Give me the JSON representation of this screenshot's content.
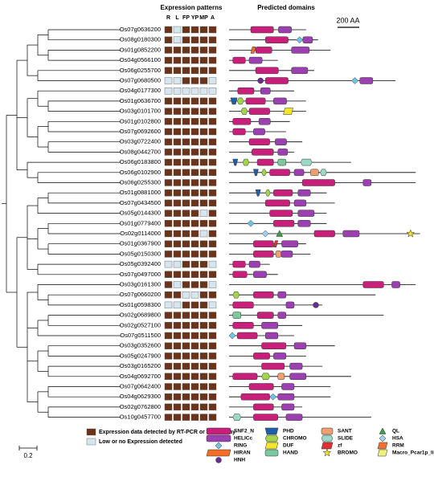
{
  "header": {
    "expression_title": "Expression patterns",
    "tissues": [
      "R",
      "L",
      "FP",
      "YP",
      "MP",
      "A"
    ],
    "domains_title": "Predicted domains",
    "scale_bar": {
      "label": "200 AA",
      "length": 200
    }
  },
  "genes": [
    {
      "name": "Os07g0636200",
      "expression": [
        1,
        0,
        1,
        1,
        1,
        1
      ],
      "length": 710,
      "domains": [
        [
          "SNF2_N",
          200,
          410
        ],
        [
          "HELICc",
          455,
          575
        ]
      ]
    },
    {
      "name": "Os08g0180300",
      "expression": [
        1,
        0,
        1,
        1,
        1,
        1
      ],
      "length": 820,
      "domains": [
        [
          "SNF2_N",
          335,
          545
        ],
        [
          "RING",
          635,
          665
        ],
        [
          "HELICc",
          680,
          770
        ]
      ]
    },
    {
      "name": "Os01g0852200",
      "expression": [
        1,
        1,
        1,
        1,
        1,
        1
      ],
      "length": 935,
      "domains": [
        [
          "HIRAN",
          200,
          245
        ],
        [
          "SNF2_N",
          245,
          395
        ],
        [
          "HELICc",
          575,
          740
        ]
      ]
    },
    {
      "name": "Os04g0566100",
      "expression": [
        1,
        1,
        1,
        1,
        1,
        1
      ],
      "length": 450,
      "domains": [
        [
          "SNF2_N",
          35,
          150
        ],
        [
          "HELICc",
          185,
          305
        ]
      ]
    },
    {
      "name": "Os06g0255700",
      "expression": [
        1,
        1,
        1,
        1,
        1,
        1
      ],
      "length": 785,
      "domains": [
        [
          "SNF2_N",
          245,
          455
        ],
        [
          "HELICc",
          575,
          725
        ]
      ]
    },
    {
      "name": "Os07g0680500",
      "expression": [
        0,
        0,
        1,
        1,
        1,
        0
      ],
      "length": 1535,
      "domains": [
        [
          "HNH",
          275,
          305
        ],
        [
          "SNF2_N",
          335,
          545
        ],
        [
          "RING",
          1145,
          1175
        ],
        [
          "HELICc",
          1205,
          1325
        ]
      ]
    },
    {
      "name": "Os04g0177300",
      "expression": [
        0,
        0,
        0,
        0,
        0,
        0
      ],
      "length": 600,
      "domains": [
        [
          "SNF2_N",
          80,
          230
        ],
        [
          "HELICc",
          290,
          380
        ]
      ]
    },
    {
      "name": "Os01g0636700",
      "expression": [
        1,
        1,
        1,
        1,
        1,
        1
      ],
      "length": 710,
      "domains": [
        [
          "PHD",
          15,
          75
        ],
        [
          "CHROMO",
          75,
          135
        ],
        [
          "SNF2_N",
          155,
          335
        ],
        [
          "HELICc",
          410,
          530
        ]
      ]
    },
    {
      "name": "Os03g0101700",
      "expression": [
        1,
        1,
        1,
        1,
        1,
        1
      ],
      "length": 710,
      "domains": [
        [
          "CHROMO",
          110,
          170
        ],
        [
          "SNF2_N",
          185,
          375
        ],
        [
          "DUF",
          500,
          590
        ]
      ]
    },
    {
      "name": "Os01g0102800",
      "expression": [
        1,
        1,
        1,
        1,
        1,
        1
      ],
      "length": 560,
      "domains": [
        [
          "SNF2_N",
          35,
          200
        ],
        [
          "HELICc",
          275,
          380
        ]
      ]
    },
    {
      "name": "Os07g0692600",
      "expression": [
        1,
        1,
        1,
        1,
        1,
        1
      ],
      "length": 525,
      "domains": [
        [
          "SNF2_N",
          35,
          150
        ],
        [
          "HELICc",
          225,
          330
        ]
      ]
    },
    {
      "name": "Os03g0722400",
      "expression": [
        1,
        1,
        1,
        1,
        1,
        1
      ],
      "length": 675,
      "domains": [
        [
          "SNF2_N",
          185,
          375
        ],
        [
          "HELICc",
          425,
          530
        ]
      ]
    },
    {
      "name": "Os08g0442700",
      "expression": [
        1,
        1,
        1,
        1,
        1,
        1
      ],
      "length": 600,
      "domains": [
        [
          "SNF2_N",
          210,
          410
        ],
        [
          "HELICc",
          450,
          540
        ]
      ]
    },
    {
      "name": "Os06g0183800",
      "expression": [
        1,
        1,
        1,
        1,
        1,
        1
      ],
      "length": 1125,
      "domains": [
        [
          "PHD",
          35,
          80
        ],
        [
          "CHROMO",
          125,
          185
        ],
        [
          "SNF2_N",
          260,
          410
        ],
        [
          "HAND",
          450,
          525
        ],
        [
          "SLIDE",
          660,
          765
        ]
      ]
    },
    {
      "name": "Os06g0102900",
      "expression": [
        1,
        1,
        1,
        1,
        1,
        1
      ],
      "length": 1720,
      "domains": [
        [
          "PHD",
          225,
          270
        ],
        [
          "CHROMO",
          300,
          345
        ],
        [
          "SNF2_N",
          375,
          560
        ],
        [
          "HELICc",
          600,
          690
        ],
        [
          "SANT",
          750,
          825
        ],
        [
          "SLIDE",
          840,
          900
        ]
      ]
    },
    {
      "name": "Os06g0255300",
      "expression": [
        1,
        1,
        1,
        1,
        1,
        1
      ],
      "length": 1720,
      "domains": [
        [
          "SNF2_N",
          675,
          975
        ],
        [
          "HELICc",
          1235,
          1310
        ]
      ]
    },
    {
      "name": "Os01g0881000",
      "expression": [
        1,
        1,
        1,
        1,
        1,
        1
      ],
      "length": 900,
      "domains": [
        [
          "PHD",
          245,
          290
        ],
        [
          "CHROMO",
          335,
          380
        ],
        [
          "SNF2_N",
          410,
          585
        ],
        [
          "HELICc",
          635,
          750
        ]
      ]
    },
    {
      "name": "Os07g0434500",
      "expression": [
        1,
        1,
        1,
        1,
        1,
        1
      ],
      "length": 975,
      "domains": [
        [
          "SNF2_N",
          335,
          560
        ],
        [
          "HELICc",
          600,
          710
        ]
      ]
    },
    {
      "name": "Os05g0144300",
      "expression": [
        1,
        1,
        1,
        1,
        0,
        1
      ],
      "length": 900,
      "domains": [
        [
          "SNF2_N",
          375,
          585
        ],
        [
          "HELICc",
          635,
          785
        ]
      ]
    },
    {
      "name": "Os01g0779400",
      "expression": [
        1,
        1,
        1,
        1,
        1,
        1
      ],
      "length": 900,
      "domains": [
        [
          "RING",
          185,
          215
        ],
        [
          "SNF2_N",
          410,
          600
        ],
        [
          "HELICc",
          635,
          750
        ]
      ]
    },
    {
      "name": "Os02g0114000",
      "expression": [
        1,
        1,
        1,
        1,
        0,
        1
      ],
      "length": 1760,
      "domains": [
        [
          "HSA",
          320,
          350
        ],
        [
          "QL",
          450,
          480
        ],
        [
          "SNF2_N",
          785,
          975
        ],
        [
          "HELICc",
          1050,
          1200
        ],
        [
          "BROMO",
          1650,
          1695
        ]
      ]
    },
    {
      "name": "Os01g0367900",
      "expression": [
        1,
        1,
        1,
        1,
        1,
        1
      ],
      "length": 710,
      "domains": [
        [
          "SNF2_N",
          225,
          410
        ],
        [
          "zf",
          410,
          450
        ],
        [
          "HELICc",
          485,
          635
        ]
      ]
    },
    {
      "name": "Os05g0150300",
      "expression": [
        1,
        1,
        1,
        1,
        1,
        1
      ],
      "length": 750,
      "domains": [
        [
          "SNF2_N",
          225,
          410
        ],
        [
          "SANT",
          430,
          480
        ],
        [
          "HELICc",
          480,
          585
        ]
      ]
    },
    {
      "name": "Os05g0392400",
      "expression": [
        0,
        0,
        1,
        1,
        1,
        0
      ],
      "length": 375,
      "domains": [
        [
          "SNF2_N",
          35,
          150
        ],
        [
          "HELICc",
          185,
          285
        ]
      ]
    },
    {
      "name": "Os07g0497000",
      "expression": [
        1,
        1,
        1,
        1,
        1,
        1
      ],
      "length": 450,
      "domains": [
        [
          "SNF2_N",
          35,
          165
        ],
        [
          "HELICc",
          225,
          345
        ]
      ]
    },
    {
      "name": "Os03g0161300",
      "expression": [
        1,
        0,
        1,
        1,
        1,
        0
      ],
      "length": 1720,
      "domains": [
        [
          "SNF2_N",
          1235,
          1425
        ],
        [
          "HELICc",
          1500,
          1575
        ]
      ]
    },
    {
      "name": "Os07g0660200",
      "expression": [
        1,
        1,
        0,
        0,
        1,
        1
      ],
      "length": 1350,
      "domains": [
        [
          "CHROMO",
          35,
          95
        ],
        [
          "SNF2_N",
          225,
          410
        ],
        [
          "HELICc",
          450,
          525
        ]
      ]
    },
    {
      "name": "Os01g0598300",
      "expression": [
        0,
        0,
        1,
        1,
        1,
        0
      ],
      "length": 860,
      "domains": [
        [
          "SNF2_N",
          35,
          225
        ],
        [
          "HELICc",
          525,
          600
        ],
        [
          "HNH",
          785,
          815
        ]
      ]
    },
    {
      "name": "Os02g0689800",
      "expression": [
        1,
        1,
        1,
        1,
        1,
        1
      ],
      "length": 1425,
      "domains": [
        [
          "HAND",
          35,
          110
        ],
        [
          "SNF2_N",
          260,
          410
        ],
        [
          "HELICc",
          450,
          525
        ]
      ]
    },
    {
      "name": "Os02g0527100",
      "expression": [
        1,
        1,
        1,
        1,
        1,
        1
      ],
      "length": 675,
      "domains": [
        [
          "SNF2_N",
          35,
          225
        ],
        [
          "HELICc",
          300,
          450
        ]
      ]
    },
    {
      "name": "Os07g0511500",
      "expression": [
        1,
        1,
        1,
        1,
        1,
        1
      ],
      "length": 600,
      "domains": [
        [
          "RING",
          15,
          45
        ],
        [
          "SNF2_N",
          75,
          260
        ],
        [
          "HELICc",
          335,
          450
        ]
      ]
    },
    {
      "name": "Os03g0352600",
      "expression": [
        1,
        1,
        1,
        1,
        1,
        1
      ],
      "length": 975,
      "domains": [
        [
          "SNF2_N",
          300,
          525
        ],
        [
          "HELICc",
          600,
          710
        ]
      ]
    },
    {
      "name": "Os05g0247900",
      "expression": [
        1,
        1,
        1,
        1,
        1,
        1
      ],
      "length": 710,
      "domains": [
        [
          "SNF2_N",
          225,
          375
        ],
        [
          "HELICc",
          410,
          525
        ]
      ]
    },
    {
      "name": "Os03g0165200",
      "expression": [
        1,
        1,
        1,
        1,
        1,
        1
      ],
      "length": 860,
      "domains": [
        [
          "SNF2_N",
          300,
          510
        ],
        [
          "HELICc",
          560,
          675
        ]
      ]
    },
    {
      "name": "Os04g0692700",
      "expression": [
        1,
        1,
        1,
        1,
        1,
        1
      ],
      "length": 1125,
      "domains": [
        [
          "SNF2_N",
          35,
          260
        ],
        [
          "CHROMO",
          300,
          375
        ],
        [
          "SANT",
          450,
          510
        ],
        [
          "HELICc",
          560,
          710
        ]
      ]
    },
    {
      "name": "Os07g0642400",
      "expression": [
        1,
        1,
        1,
        1,
        1,
        1
      ],
      "length": 935,
      "domains": [
        [
          "SNF2_N",
          185,
          410
        ],
        [
          "HELICc",
          485,
          600
        ]
      ]
    },
    {
      "name": "Os04g0629300",
      "expression": [
        1,
        1,
        1,
        1,
        1,
        1
      ],
      "length": 935,
      "domains": [
        [
          "SNF2_N",
          110,
          375
        ],
        [
          "RING",
          390,
          420
        ],
        [
          "HELICc",
          450,
          600
        ]
      ]
    },
    {
      "name": "Os02g0762800",
      "expression": [
        1,
        1,
        1,
        1,
        1,
        1
      ],
      "length": 675,
      "domains": [
        [
          "SNF2_N",
          225,
          410
        ],
        [
          "HELICc",
          485,
          600
        ]
      ]
    },
    {
      "name": "Os10g0457700",
      "expression": [
        1,
        1,
        1,
        1,
        1,
        1
      ],
      "length": 1310,
      "domains": [
        [
          "SLIDE",
          35,
          110
        ],
        [
          "SNF2_N",
          225,
          450
        ],
        [
          "HELICc",
          525,
          675
        ]
      ]
    }
  ],
  "legend": {
    "tree_scale": "0.2",
    "expression": [
      {
        "label": "Expression data detected by RT-PCR or microarray",
        "detected": 1
      },
      {
        "label": "Low or no Expression detected",
        "detected": 0
      }
    ],
    "domain_types": [
      {
        "name": "SNF2_N",
        "color": "#c8207a",
        "shape": "rect"
      },
      {
        "name": "HELICc",
        "color": "#9c3fb0",
        "shape": "rect"
      },
      {
        "name": "RING",
        "color": "#6fc3e8",
        "shape": "diamond"
      },
      {
        "name": "HIRAN",
        "color": "#f26c2a",
        "shape": "parallelogram"
      },
      {
        "name": "HNH",
        "color": "#6a2c91",
        "shape": "circle"
      },
      {
        "name": "PHD",
        "color": "#1f5fa8",
        "shape": "trapezoid"
      },
      {
        "name": "CHROMO",
        "color": "#a3d44a",
        "shape": "hexagon"
      },
      {
        "name": "DUF",
        "color": "#f2e52a",
        "shape": "parallelogram"
      },
      {
        "name": "HAND",
        "color": "#7ec8a0",
        "shape": "rect"
      },
      {
        "name": "SANT",
        "color": "#f0a070",
        "shape": "rect"
      },
      {
        "name": "SLIDE",
        "color": "#9ad8c8",
        "shape": "hexagon"
      },
      {
        "name": "zf",
        "color": "#e03030",
        "shape": "parallelogram"
      },
      {
        "name": "BROMO",
        "color": "#f5e020",
        "shape": "star"
      },
      {
        "name": "QL",
        "color": "#38a048",
        "shape": "triangle"
      },
      {
        "name": "HSA",
        "color": "#a0d0f0",
        "shape": "diamond"
      },
      {
        "name": "RRM",
        "color": "#f07030",
        "shape": "parallelogram"
      },
      {
        "name": "Macro_Pcar1p_like",
        "color": "#f0f080",
        "shape": "parallelogram"
      }
    ]
  }
}
